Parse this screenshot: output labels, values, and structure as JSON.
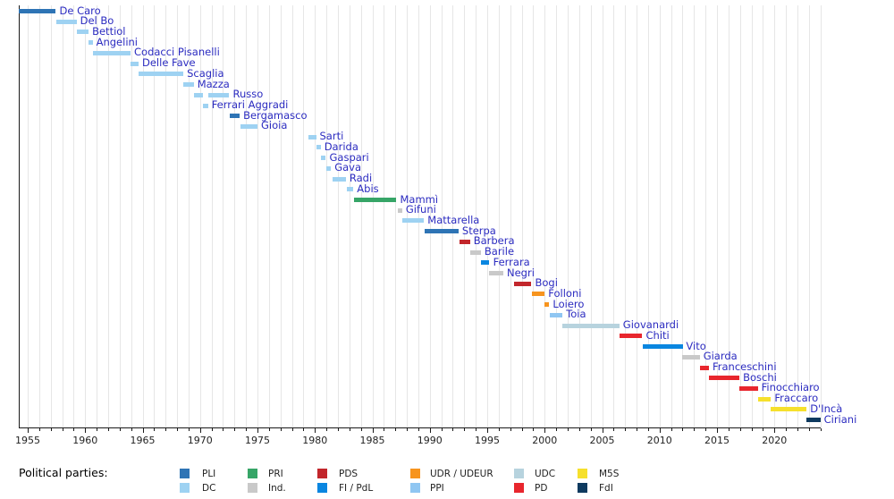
{
  "chart_data": {
    "type": "bar",
    "subtype": "timeline-gantt",
    "title": "",
    "xlabel": "",
    "ylabel": "",
    "x_axis": {
      "domain_years": [
        1954.2,
        2024.05
      ],
      "tick_label_years": [
        1955,
        1960,
        1965,
        1970,
        1975,
        1980,
        1985,
        1990,
        1995,
        2000,
        2005,
        2010,
        2015,
        2020
      ],
      "minor_tick_every_years": 1,
      "major_tick_every_years": 5,
      "grid": "vertical light-gray line every year"
    },
    "label_color": "#2b2bc0",
    "parties": [
      {
        "code": "PLI",
        "color": "#2e74b5"
      },
      {
        "code": "DC",
        "color": "#9ed2f2"
      },
      {
        "code": "PRI",
        "color": "#36a567"
      },
      {
        "code": "Ind.",
        "color": "#c9c9c9"
      },
      {
        "code": "PDS",
        "color": "#c2262b"
      },
      {
        "code": "FI / PdL",
        "color": "#0a86e0"
      },
      {
        "code": "UDR / UDEUR",
        "color": "#f7941e"
      },
      {
        "code": "UDC",
        "color": "#b7d3de"
      },
      {
        "code": "PPI",
        "color": "#8fc6f2"
      },
      {
        "code": "PD",
        "color": "#e8262d"
      },
      {
        "code": "M5S",
        "color": "#f6e02c"
      },
      {
        "code": "FdI",
        "color": "#0e3a5f"
      }
    ],
    "ministers": [
      {
        "name": "De Caro",
        "party": "PLI",
        "terms": [
          [
            1954.2,
            1957.45
          ]
        ]
      },
      {
        "name": "Del Bo",
        "party": "DC",
        "terms": [
          [
            1957.45,
            1959.25
          ]
        ]
      },
      {
        "name": "Bettiol",
        "party": "DC",
        "terms": [
          [
            1959.25,
            1960.3
          ]
        ]
      },
      {
        "name": "Angelini",
        "party": "DC",
        "terms": [
          [
            1960.3,
            1960.65
          ]
        ]
      },
      {
        "name": "Codacci Pisanelli",
        "party": "DC",
        "terms": [
          [
            1960.65,
            1963.95
          ]
        ]
      },
      {
        "name": "Delle Fave",
        "party": "DC",
        "terms": [
          [
            1963.95,
            1964.65
          ]
        ]
      },
      {
        "name": "Scaglia",
        "party": "DC",
        "terms": [
          [
            1964.65,
            1968.55
          ]
        ]
      },
      {
        "name": "Mazza",
        "party": "DC",
        "terms": [
          [
            1968.55,
            1969.45
          ]
        ]
      },
      {
        "name": "Russo",
        "party": "DC",
        "terms": [
          [
            1969.45,
            1970.25
          ],
          [
            1970.7,
            1972.55
          ]
        ]
      },
      {
        "name": "Ferrari Aggradi",
        "party": "DC",
        "terms": [
          [
            1970.25,
            1970.7
          ]
        ]
      },
      {
        "name": "Bergamasco",
        "party": "PLI",
        "terms": [
          [
            1972.55,
            1973.45
          ]
        ]
      },
      {
        "name": "Gioia",
        "party": "DC",
        "terms": [
          [
            1973.5,
            1975.0
          ]
        ]
      },
      {
        "name": "Sarti",
        "party": "DC",
        "terms": [
          [
            1979.45,
            1980.1
          ]
        ]
      },
      {
        "name": "Darida",
        "party": "DC",
        "terms": [
          [
            1980.1,
            1980.5
          ]
        ]
      },
      {
        "name": "Gaspari",
        "party": "DC",
        "terms": [
          [
            1980.5,
            1980.95
          ]
        ]
      },
      {
        "name": "Gava",
        "party": "DC",
        "terms": [
          [
            1980.95,
            1981.4
          ]
        ]
      },
      {
        "name": "Radi",
        "party": "DC",
        "terms": [
          [
            1981.5,
            1982.7
          ]
        ]
      },
      {
        "name": "Abis",
        "party": "DC",
        "terms": [
          [
            1982.75,
            1983.35
          ]
        ]
      },
      {
        "name": "Mammì",
        "party": "PRI",
        "terms": [
          [
            1983.4,
            1987.1
          ]
        ]
      },
      {
        "name": "Gifuni",
        "party": "Ind.",
        "terms": [
          [
            1987.2,
            1987.6
          ]
        ]
      },
      {
        "name": "Mattarella",
        "party": "DC",
        "terms": [
          [
            1987.6,
            1989.5
          ]
        ]
      },
      {
        "name": "Sterpa",
        "party": "PLI",
        "terms": [
          [
            1989.55,
            1992.5
          ]
        ]
      },
      {
        "name": "Barbera",
        "party": "PDS",
        "terms": [
          [
            1992.6,
            1993.5
          ]
        ]
      },
      {
        "name": "Barile",
        "party": "Ind.",
        "terms": [
          [
            1993.5,
            1994.45
          ]
        ]
      },
      {
        "name": "Ferrara",
        "party": "FI / PdL",
        "terms": [
          [
            1994.45,
            1995.2
          ]
        ]
      },
      {
        "name": "Negri",
        "party": "Ind.",
        "terms": [
          [
            1995.15,
            1996.4
          ]
        ]
      },
      {
        "name": "Bogi",
        "party": "PDS",
        "terms": [
          [
            1997.35,
            1998.85
          ]
        ]
      },
      {
        "name": "Folloni",
        "party": "UDR / UDEUR",
        "terms": [
          [
            1998.85,
            2000.0
          ]
        ]
      },
      {
        "name": "Loiero",
        "party": "UDR / UDEUR",
        "terms": [
          [
            2000.0,
            2000.4
          ]
        ]
      },
      {
        "name": "Toia",
        "party": "PPI",
        "terms": [
          [
            2000.45,
            2001.55
          ]
        ]
      },
      {
        "name": "Giovanardi",
        "party": "UDC",
        "terms": [
          [
            2001.55,
            2006.5
          ]
        ]
      },
      {
        "name": "Chiti",
        "party": "PD",
        "terms": [
          [
            2006.5,
            2008.5
          ]
        ]
      },
      {
        "name": "Vito",
        "party": "FI / PdL",
        "terms": [
          [
            2008.5,
            2012.0
          ]
        ]
      },
      {
        "name": "Giarda",
        "party": "Ind.",
        "terms": [
          [
            2012.0,
            2013.5
          ]
        ]
      },
      {
        "name": "Franceschini",
        "party": "PD",
        "terms": [
          [
            2013.5,
            2014.3
          ]
        ]
      },
      {
        "name": "Boschi",
        "party": "PD",
        "terms": [
          [
            2014.3,
            2016.95
          ]
        ]
      },
      {
        "name": "Finocchiaro",
        "party": "PD",
        "terms": [
          [
            2016.95,
            2018.55
          ]
        ]
      },
      {
        "name": "Fraccaro",
        "party": "M5S",
        "terms": [
          [
            2018.55,
            2019.7
          ]
        ]
      },
      {
        "name": "D'Incà",
        "party": "M5S",
        "terms": [
          [
            2019.7,
            2022.8
          ]
        ]
      },
      {
        "name": "Ciriani",
        "party": "FdI",
        "terms": [
          [
            2022.8,
            2024.0
          ]
        ]
      }
    ],
    "legend": {
      "heading": "Political parties:",
      "position": "bottom",
      "columns": [
        [
          "PLI",
          "DC"
        ],
        [
          "PRI",
          "Ind."
        ],
        [
          "PDS",
          "FI / PdL"
        ],
        [
          "UDR / UDEUR",
          "PPI"
        ],
        [
          "UDC",
          "PD"
        ],
        [
          "M5S",
          "FdI"
        ]
      ]
    }
  }
}
